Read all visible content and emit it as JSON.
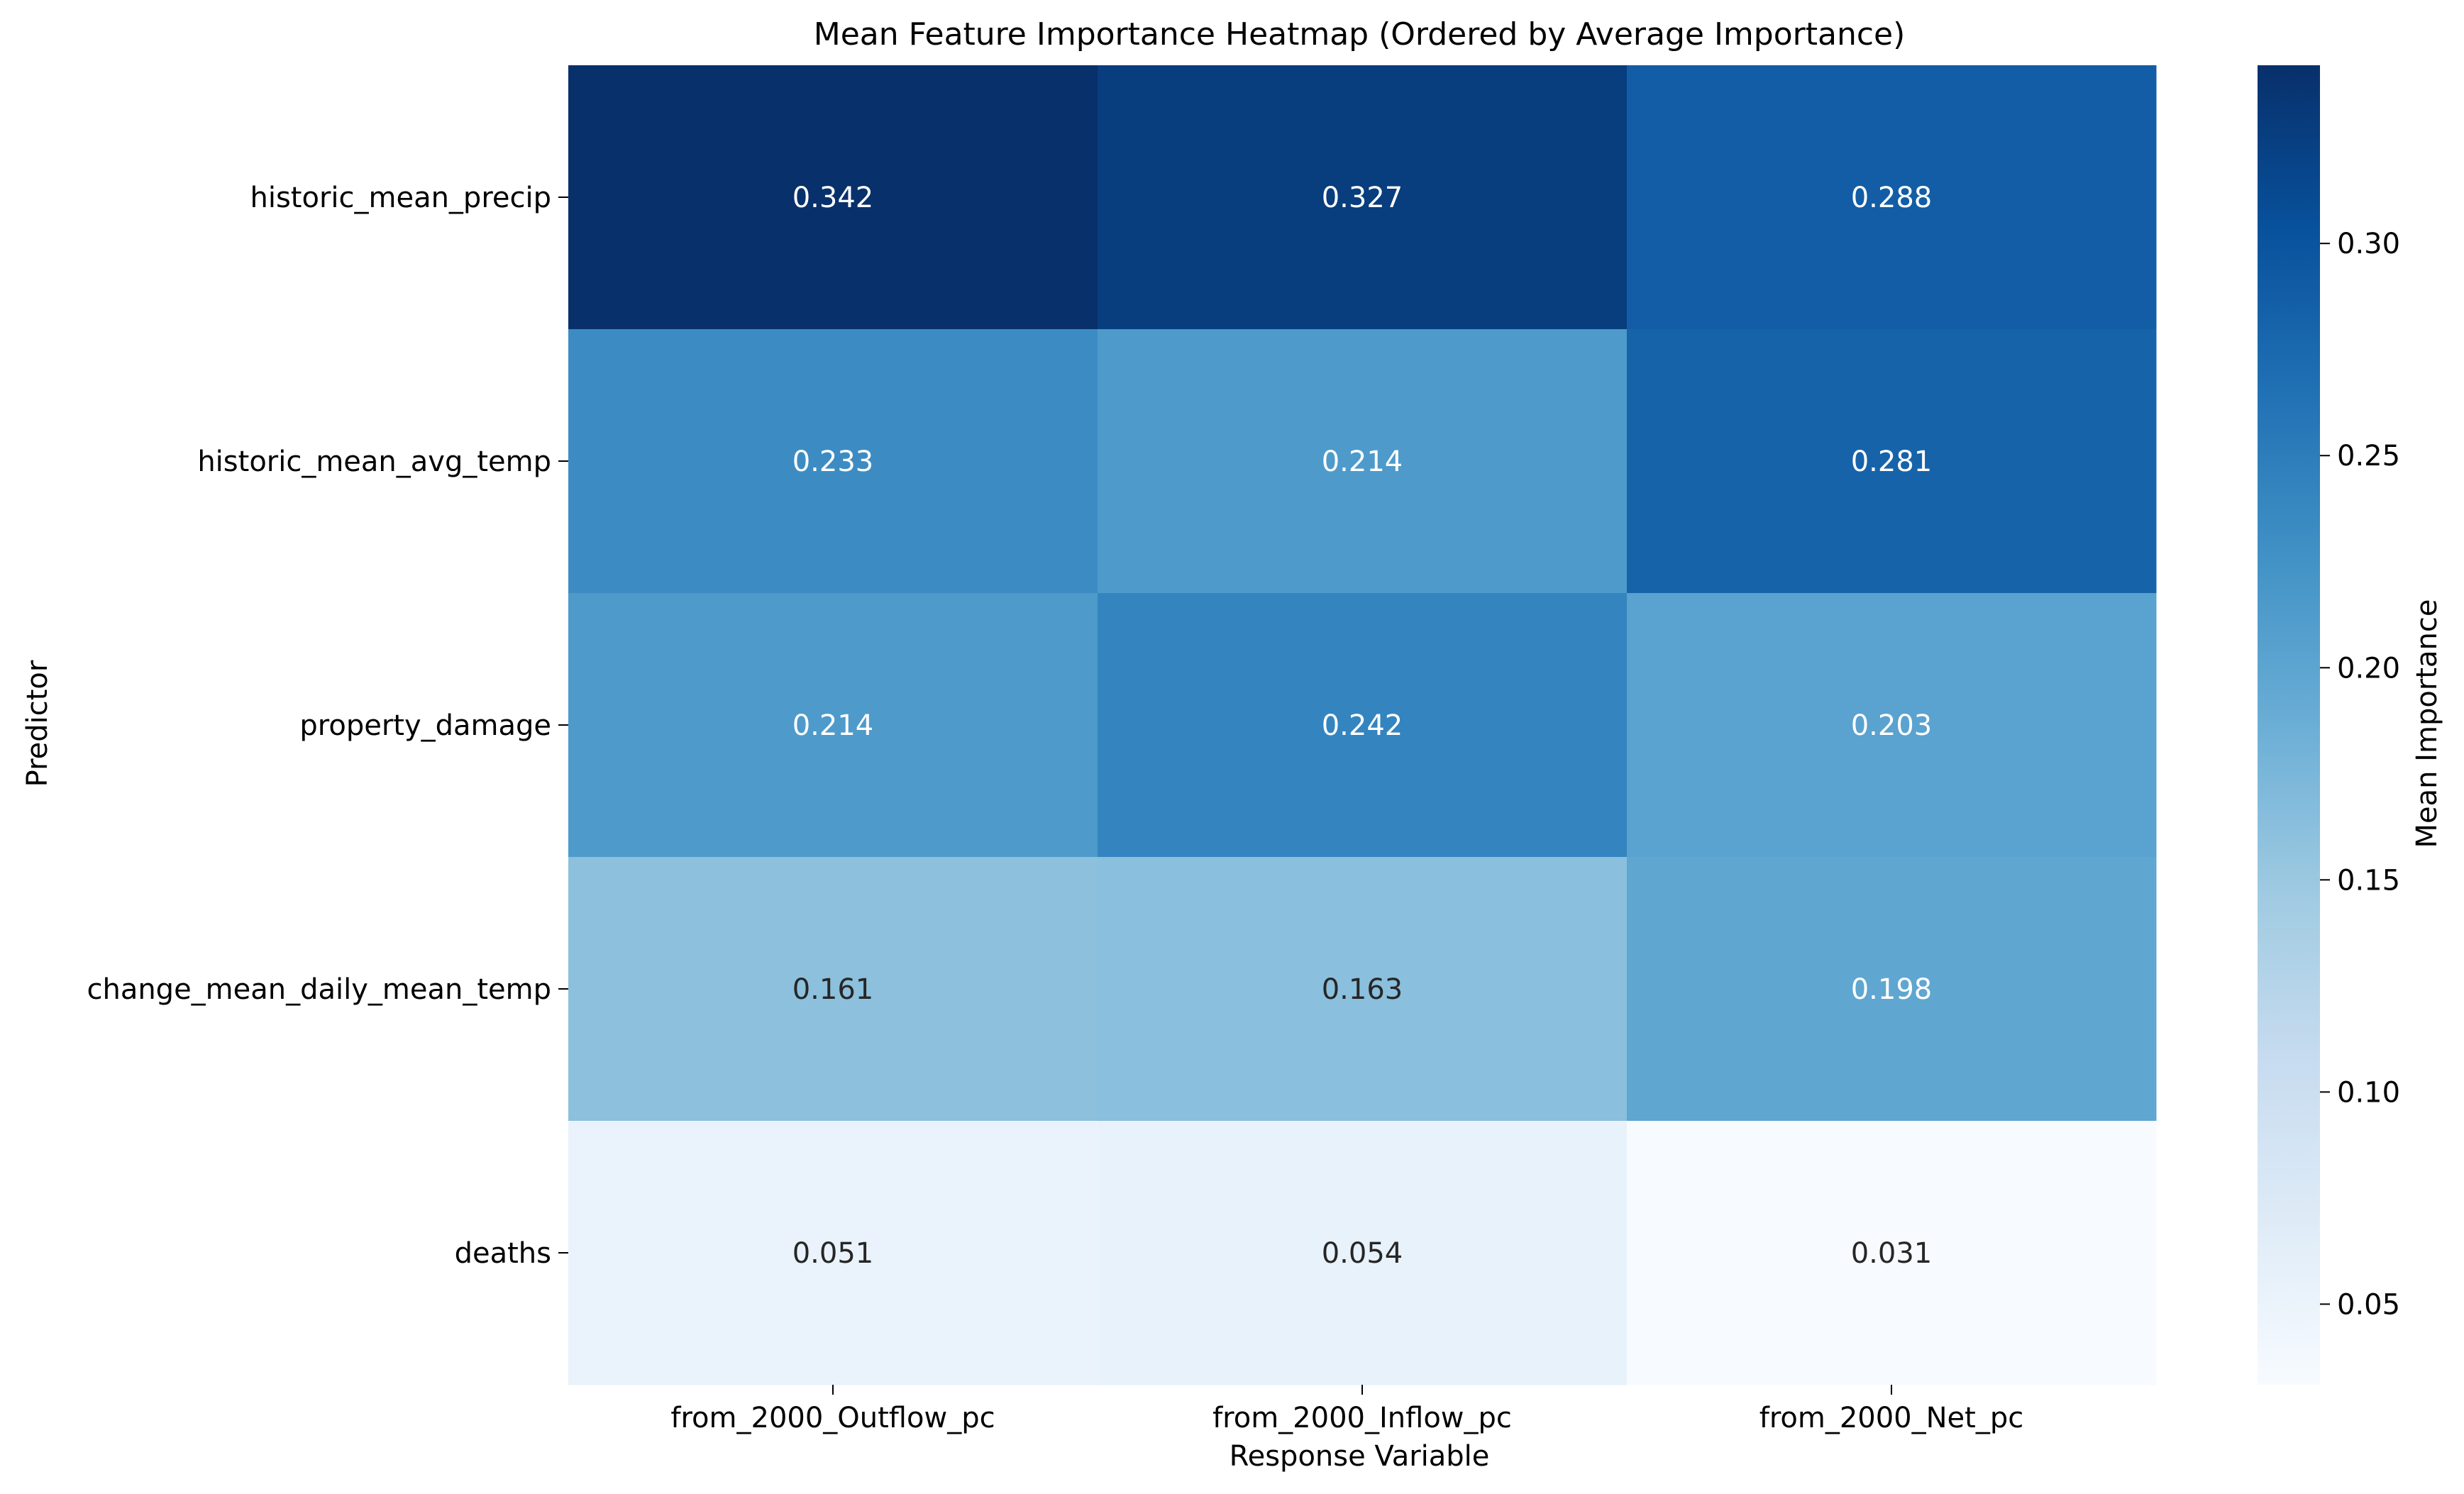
{
  "chart_data": {
    "type": "heatmap",
    "title": "Mean Feature Importance Heatmap (Ordered by Average Importance)",
    "xlabel": "Response Variable",
    "ylabel": "Predictor",
    "x_categories": [
      "from_2000_Outflow_pc",
      "from_2000_Inflow_pc",
      "from_2000_Net_pc"
    ],
    "y_categories": [
      "historic_mean_precip",
      "historic_mean_avg_temp",
      "property_damage",
      "change_mean_daily_mean_temp",
      "deaths"
    ],
    "values": [
      [
        0.342,
        0.327,
        0.288
      ],
      [
        0.233,
        0.214,
        0.281
      ],
      [
        0.214,
        0.242,
        0.203
      ],
      [
        0.161,
        0.163,
        0.198
      ],
      [
        0.051,
        0.054,
        0.031
      ]
    ],
    "value_labels": [
      [
        "0.342",
        "0.327",
        "0.288"
      ],
      [
        "0.233",
        "0.214",
        "0.281"
      ],
      [
        "0.214",
        "0.242",
        "0.203"
      ],
      [
        "0.161",
        "0.163",
        "0.198"
      ],
      [
        "0.051",
        "0.054",
        "0.031"
      ]
    ],
    "colormap": "Blues",
    "colorbar": {
      "label": "Mean Importance",
      "range": [
        0.031,
        0.342
      ],
      "ticks": [
        0.05,
        0.1,
        0.15,
        0.2,
        0.25,
        0.3
      ],
      "tick_labels": [
        "0.05",
        "0.10",
        "0.15",
        "0.20",
        "0.25",
        "0.30"
      ]
    }
  }
}
